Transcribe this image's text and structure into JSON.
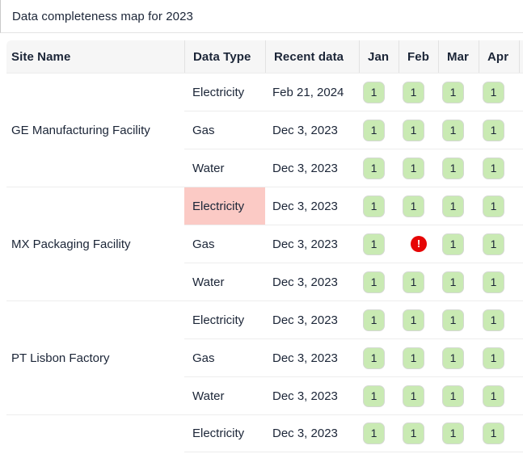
{
  "title": "Data completeness map for 2023",
  "table": {
    "columns": [
      "Site Name",
      "Data Type",
      "Recent data",
      "Jan",
      "Feb",
      "Mar",
      "Apr"
    ],
    "groups": [
      {
        "site": "GE Manufacturing Facility",
        "rows": [
          {
            "type": "Electricity",
            "recent": "Feb 21, 2024",
            "highlight": false,
            "months": [
              "1",
              "1",
              "1",
              "1"
            ]
          },
          {
            "type": "Gas",
            "recent": "Dec 3, 2023",
            "highlight": false,
            "months": [
              "1",
              "1",
              "1",
              "1"
            ]
          },
          {
            "type": "Water",
            "recent": "Dec 3, 2023",
            "highlight": false,
            "months": [
              "1",
              "1",
              "1",
              "1"
            ]
          }
        ]
      },
      {
        "site": "MX Packaging Facility",
        "rows": [
          {
            "type": "Electricity",
            "recent": "Dec 3, 2023",
            "highlight": true,
            "months": [
              "1",
              "1",
              "1",
              "1"
            ]
          },
          {
            "type": "Gas",
            "recent": "Dec 3, 2023",
            "highlight": false,
            "months": [
              "1",
              "error",
              "1",
              "1"
            ]
          },
          {
            "type": "Water",
            "recent": "Dec 3, 2023",
            "highlight": false,
            "months": [
              "1",
              "1",
              "1",
              "1"
            ]
          }
        ]
      },
      {
        "site": "PT Lisbon Factory",
        "rows": [
          {
            "type": "Electricity",
            "recent": "Dec 3, 2023",
            "highlight": false,
            "months": [
              "1",
              "1",
              "1",
              "1"
            ]
          },
          {
            "type": "Gas",
            "recent": "Dec 3, 2023",
            "highlight": false,
            "months": [
              "1",
              "1",
              "1",
              "1"
            ]
          },
          {
            "type": "Water",
            "recent": "Dec 3, 2023",
            "highlight": false,
            "months": [
              "1",
              "1",
              "1",
              "1"
            ]
          }
        ]
      },
      {
        "site": "",
        "rows": [
          {
            "type": "Electricity",
            "recent": "Dec 3, 2023",
            "highlight": false,
            "months": [
              "1",
              "1",
              "1",
              "1"
            ]
          }
        ]
      }
    ]
  },
  "icons": {
    "error_glyph": "!"
  },
  "colors": {
    "complete_badge_bg": "#c9eab3",
    "highlight_cell_bg": "#fbcac5",
    "error_icon_bg": "#e60505",
    "text": "#1b2537",
    "header_bg": "#f6f6f6"
  }
}
